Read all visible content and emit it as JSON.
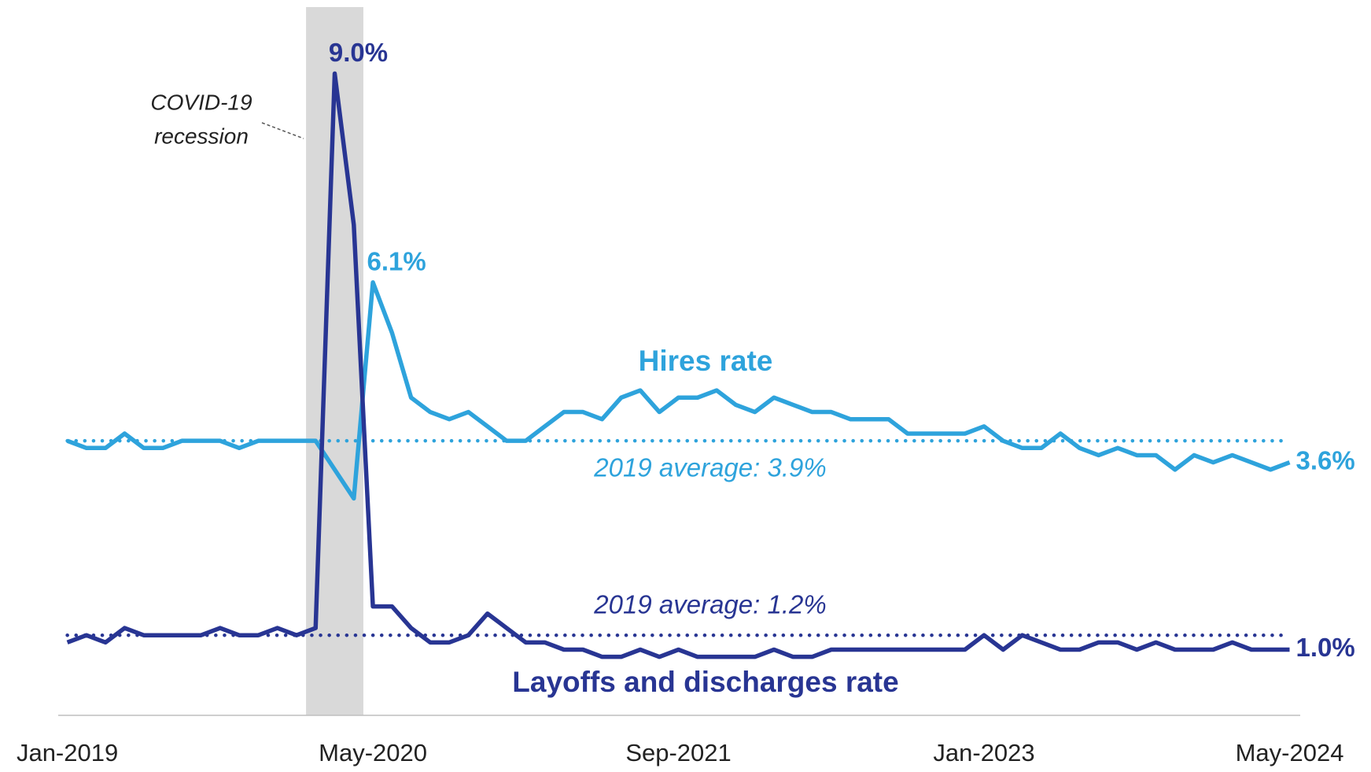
{
  "chart_data": {
    "type": "line",
    "categories": [
      "Jan-2019",
      null,
      null,
      null,
      null,
      null,
      null,
      null,
      null,
      null,
      null,
      null,
      null,
      null,
      null,
      null,
      "May-2020",
      null,
      null,
      null,
      null,
      null,
      null,
      null,
      null,
      null,
      null,
      null,
      null,
      null,
      null,
      null,
      "Sep-2021",
      null,
      null,
      null,
      null,
      null,
      null,
      null,
      null,
      null,
      null,
      null,
      null,
      null,
      null,
      null,
      "Jan-2023",
      null,
      null,
      null,
      null,
      null,
      null,
      null,
      null,
      null,
      null,
      null,
      null,
      null,
      null,
      null,
      "May-2024"
    ],
    "series": [
      {
        "name": "Hires rate",
        "color": "#2ea3dc",
        "values": [
          3.9,
          3.8,
          3.8,
          4.0,
          3.8,
          3.8,
          3.9,
          3.9,
          3.9,
          3.8,
          3.9,
          3.9,
          3.9,
          3.9,
          3.5,
          3.1,
          6.1,
          5.4,
          4.5,
          4.3,
          4.2,
          4.3,
          4.1,
          3.9,
          3.9,
          4.1,
          4.3,
          4.3,
          4.2,
          4.5,
          4.6,
          4.3,
          4.5,
          4.5,
          4.6,
          4.4,
          4.3,
          4.5,
          4.4,
          4.3,
          4.3,
          4.2,
          4.2,
          4.2,
          4.0,
          4.0,
          4.0,
          4.0,
          4.1,
          3.9,
          3.8,
          3.8,
          4.0,
          3.8,
          3.7,
          3.8,
          3.7,
          3.7,
          3.5,
          3.7,
          3.6,
          3.7,
          3.6,
          3.5,
          3.6
        ],
        "value_labels": [
          null,
          null,
          null,
          null,
          null,
          null,
          null,
          null,
          null,
          null,
          null,
          null,
          null,
          null,
          null,
          null,
          "6.1%",
          null,
          null,
          null,
          null,
          null,
          null,
          null,
          null,
          null,
          null,
          null,
          null,
          null,
          null,
          null,
          null,
          null,
          null,
          null,
          null,
          null,
          null,
          null,
          null,
          null,
          null,
          null,
          null,
          null,
          null,
          null,
          null,
          null,
          null,
          null,
          null,
          null,
          null,
          null,
          null,
          null,
          null,
          null,
          null,
          null,
          null,
          null,
          "3.6%"
        ]
      },
      {
        "name": "Layoffs and discharges rate",
        "color": "#283593",
        "values": [
          1.1,
          1.2,
          1.1,
          1.3,
          1.2,
          1.2,
          1.2,
          1.2,
          1.3,
          1.2,
          1.2,
          1.3,
          1.2,
          1.3,
          9.0,
          6.9,
          1.6,
          1.6,
          1.3,
          1.1,
          1.1,
          1.2,
          1.5,
          1.3,
          1.1,
          1.1,
          1.0,
          1.0,
          0.9,
          0.9,
          1.0,
          0.9,
          1.0,
          0.9,
          0.9,
          0.9,
          0.9,
          1.0,
          0.9,
          0.9,
          1.0,
          1.0,
          1.0,
          1.0,
          1.0,
          1.0,
          1.0,
          1.0,
          1.2,
          1.0,
          1.2,
          1.1,
          1.0,
          1.0,
          1.1,
          1.1,
          1.0,
          1.1,
          1.0,
          1.0,
          1.0,
          1.1,
          1.0,
          1.0,
          1.0
        ],
        "value_labels": [
          null,
          null,
          null,
          null,
          null,
          null,
          null,
          null,
          null,
          null,
          null,
          null,
          null,
          null,
          "9.0%",
          null,
          null,
          null,
          null,
          null,
          null,
          null,
          null,
          null,
          null,
          null,
          null,
          null,
          null,
          null,
          null,
          null,
          null,
          null,
          null,
          null,
          null,
          null,
          null,
          null,
          null,
          null,
          null,
          null,
          null,
          null,
          null,
          null,
          null,
          null,
          null,
          null,
          null,
          null,
          null,
          null,
          null,
          null,
          null,
          null,
          null,
          null,
          null,
          null,
          "1.0%"
        ]
      }
    ],
    "reference_lines": [
      {
        "value": 3.9,
        "label": "2019 average: 3.9%",
        "color": "#2ea3dc"
      },
      {
        "value": 1.2,
        "label": "2019 average: 1.2%",
        "color": "#283593"
      }
    ],
    "recession": {
      "label": [
        "COVID-19",
        "recession"
      ],
      "span": [
        13,
        15
      ],
      "color": "#d9d9d9"
    },
    "ylim": [
      0,
      10
    ]
  }
}
